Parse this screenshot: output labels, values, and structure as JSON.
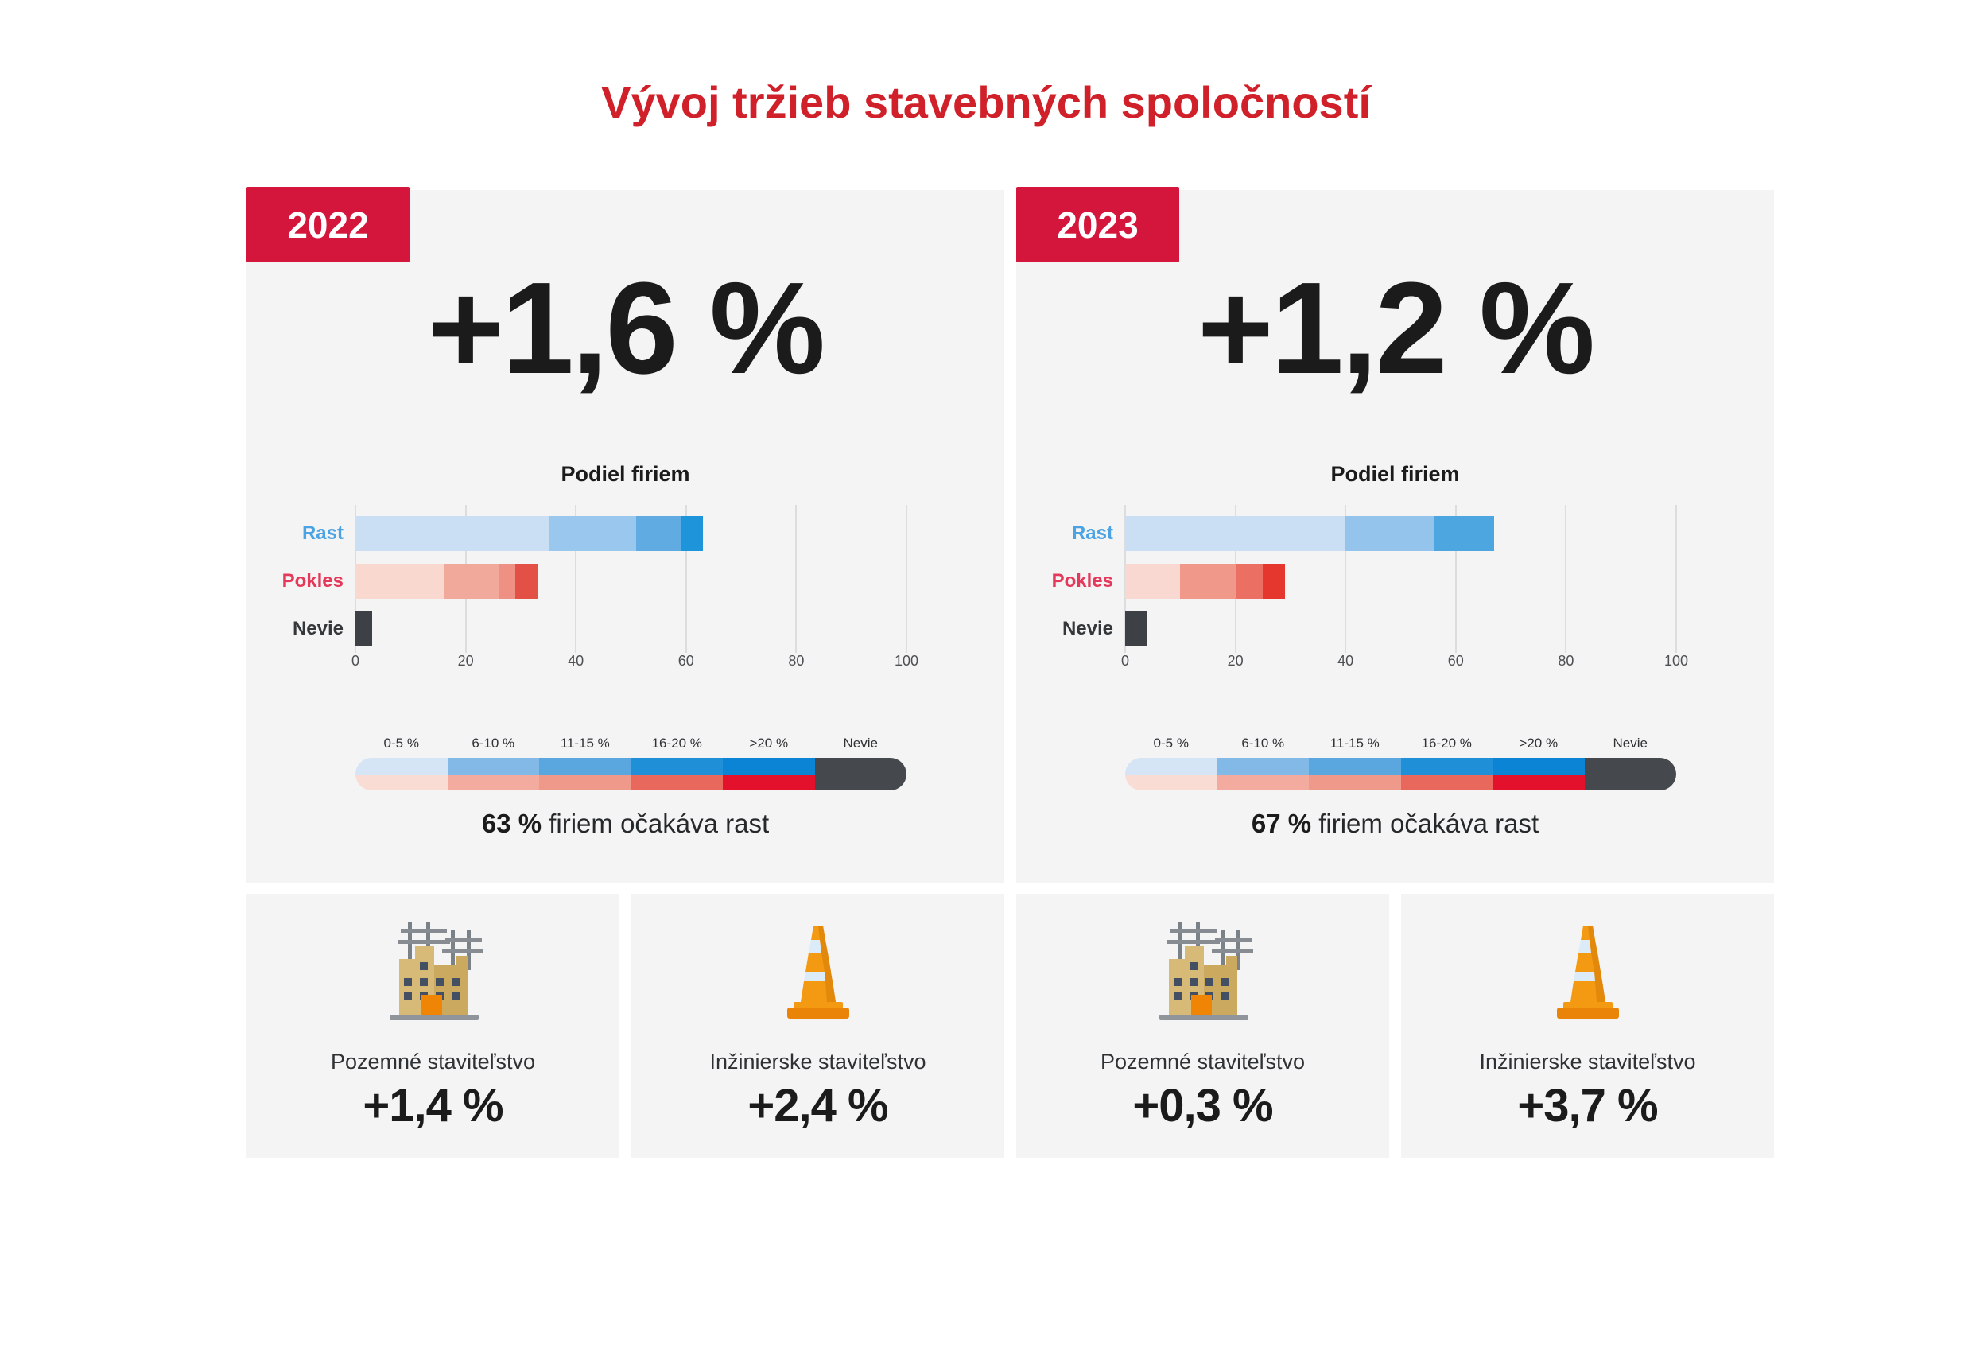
{
  "title": "Vývoj tržieb stavebných spoločností",
  "colors": {
    "title_red": "#d02029",
    "badge_red": "#d4163c",
    "panel_bg": "#f4f4f5",
    "text_dark": "#1b1b1b",
    "axis_gray": "#4d5052",
    "grid_gray": "#dcddde"
  },
  "panels": [
    {
      "year": "2022",
      "headline": "+1,6 %",
      "chart_title": "Podiel firiem",
      "summary_value": "63 %",
      "summary_text": " firiem očakáva rast",
      "axis_ticks": [
        0,
        20,
        40,
        60,
        80,
        100
      ],
      "rows": [
        {
          "label": "Rast",
          "label_color": "#4ba3e3",
          "segments": [
            {
              "value": 35,
              "color": "#cbdff4"
            },
            {
              "value": 16,
              "color": "#99c7ed"
            },
            {
              "value": 8,
              "color": "#60ace2"
            },
            {
              "value": 4,
              "color": "#1e95da"
            }
          ]
        },
        {
          "label": "Pokles",
          "label_color": "#e4395a",
          "segments": [
            {
              "value": 16,
              "color": "#f8d8cf"
            },
            {
              "value": 10,
              "color": "#f1a99b"
            },
            {
              "value": 3,
              "color": "#ee9184"
            },
            {
              "value": 4,
              "color": "#e35045"
            }
          ]
        },
        {
          "label": "Nevie",
          "label_color": "#35383a",
          "segments": [
            {
              "value": 3,
              "color": "#3d4044"
            }
          ]
        }
      ]
    },
    {
      "year": "2023",
      "headline": "+1,2 %",
      "chart_title": "Podiel firiem",
      "summary_value": "67 %",
      "summary_text": " firiem očakáva rast",
      "axis_ticks": [
        0,
        20,
        40,
        60,
        80,
        100
      ],
      "rows": [
        {
          "label": "Rast",
          "label_color": "#4ba3e3",
          "segments": [
            {
              "value": 40,
              "color": "#cbdff4"
            },
            {
              "value": 16,
              "color": "#94c4eb"
            },
            {
              "value": 11,
              "color": "#4ea6e0"
            }
          ]
        },
        {
          "label": "Pokles",
          "label_color": "#e4395a",
          "segments": [
            {
              "value": 10,
              "color": "#f8d8d0"
            },
            {
              "value": 10,
              "color": "#f0998a"
            },
            {
              "value": 5,
              "color": "#eb6f63"
            },
            {
              "value": 4,
              "color": "#e6372f"
            }
          ]
        },
        {
          "label": "Nevie",
          "label_color": "#35383a",
          "segments": [
            {
              "value": 4,
              "color": "#3d4044"
            }
          ]
        }
      ]
    }
  ],
  "legend": {
    "labels": [
      "0-5 %",
      "6-10 %",
      "11-15 %",
      "16-20 %",
      ">20 %",
      "Nevie"
    ],
    "top_colors": [
      "#d6e5f6",
      "#82b9e6",
      "#5aa7e0",
      "#1f90d8",
      "#0c84d6"
    ],
    "bottom_colors": [
      "#f9dcd3",
      "#f2ab9e",
      "#ef998b",
      "#e8685e",
      "#e4112d"
    ],
    "nevie_color": "#45484c"
  },
  "cards": [
    {
      "icon": "building-icon",
      "label": "Pozemné staviteľstvo",
      "value": "+1,4 %"
    },
    {
      "icon": "traffic-cone-icon",
      "label": "Inžinierske staviteľstvo",
      "value": "+2,4 %"
    },
    {
      "icon": "building-icon",
      "label": "Pozemné staviteľstvo",
      "value": "+0,3 %"
    },
    {
      "icon": "traffic-cone-icon",
      "label": "Inžinierske staviteľstvo",
      "value": "+3,7 %"
    }
  ],
  "chart_data": [
    {
      "type": "bar",
      "orientation": "horizontal",
      "group": "2022",
      "title": "Podiel firiem",
      "headline": "+1,6 %",
      "categories": [
        "Rast",
        "Pokles",
        "Nevie"
      ],
      "values": [
        63,
        33,
        3
      ],
      "stacked_segments": {
        "Rast": [
          35,
          16,
          8,
          4
        ],
        "Pokles": [
          16,
          10,
          3,
          4
        ],
        "Nevie": [
          3
        ]
      },
      "xlim": [
        0,
        100
      ],
      "xticks": [
        0,
        20,
        40,
        60,
        80,
        100
      ],
      "grid": true,
      "legend_labels": [
        "0-5 %",
        "6-10 %",
        "11-15 %",
        "16-20 %",
        ">20 %",
        "Nevie"
      ],
      "annotation": "63 % firiem očakáva rast",
      "sub_values": {
        "Pozemné staviteľstvo": "+1,4 %",
        "Inžinierske staviteľstvo": "+2,4 %"
      }
    },
    {
      "type": "bar",
      "orientation": "horizontal",
      "group": "2023",
      "title": "Podiel firiem",
      "headline": "+1,2 %",
      "categories": [
        "Rast",
        "Pokles",
        "Nevie"
      ],
      "values": [
        67,
        29,
        4
      ],
      "stacked_segments": {
        "Rast": [
          40,
          16,
          11
        ],
        "Pokles": [
          10,
          10,
          5,
          4
        ],
        "Nevie": [
          4
        ]
      },
      "xlim": [
        0,
        100
      ],
      "xticks": [
        0,
        20,
        40,
        60,
        80,
        100
      ],
      "grid": true,
      "legend_labels": [
        "0-5 %",
        "6-10 %",
        "11-15 %",
        "16-20 %",
        ">20 %",
        "Nevie"
      ],
      "annotation": "67 % firiem očakáva rast",
      "sub_values": {
        "Pozemné staviteľstvo": "+0,3 %",
        "Inžinierske staviteľstvo": "+3,7 %"
      }
    }
  ]
}
